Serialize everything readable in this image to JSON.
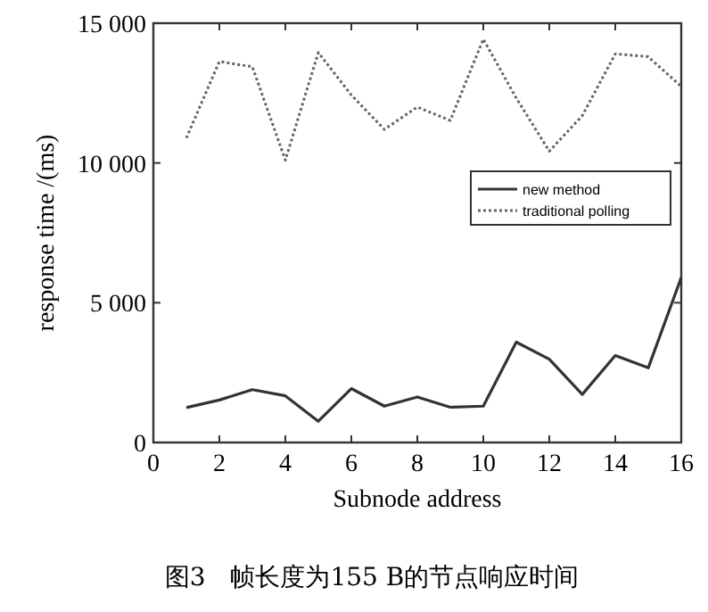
{
  "chart_data": {
    "type": "line",
    "xlabel": "Subnode address",
    "ylabel": "response time /(ms)",
    "annotations": [
      "图3　帧长度为155 B的节点响应时间"
    ],
    "x": [
      1,
      2,
      3,
      4,
      5,
      6,
      7,
      8,
      9,
      10,
      11,
      12,
      13,
      14,
      15,
      16
    ],
    "series": [
      {
        "name": "new method",
        "color": "#333333",
        "line_style": "solid",
        "values": [
          1250,
          1520,
          1890,
          1670,
          760,
          1930,
          1300,
          1630,
          1260,
          1300,
          3590,
          2980,
          1720,
          3110,
          2670,
          5900
        ]
      },
      {
        "name": "traditional polling",
        "color": "#666666",
        "line_style": "dotted",
        "values": [
          10890,
          13630,
          13440,
          10100,
          13950,
          12430,
          11200,
          12000,
          11520,
          14430,
          12320,
          10420,
          11690,
          13900,
          13800,
          12740
        ]
      }
    ],
    "xlim": [
      0,
      16
    ],
    "ylim": [
      0,
      15000
    ],
    "xticks": [
      0,
      2,
      4,
      6,
      8,
      10,
      12,
      14,
      16
    ],
    "yticks": [
      0,
      {
        "value": 5000,
        "label": "5 000"
      },
      {
        "value": 10000,
        "label": "10 000"
      },
      {
        "value": 15000,
        "label": "15 000"
      }
    ],
    "grid": false,
    "legend": "right",
    "marker": "none"
  }
}
